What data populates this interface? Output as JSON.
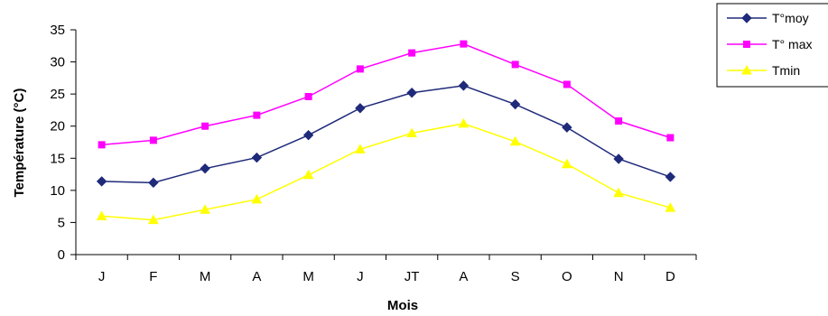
{
  "chart_data": {
    "type": "line",
    "title": "",
    "xlabel": "Mois",
    "ylabel": "Température (°C)",
    "categories": [
      "J",
      "F",
      "M",
      "A",
      "M",
      "J",
      "JT",
      "A",
      "S",
      "O",
      "N",
      "D"
    ],
    "ylim": [
      0,
      35
    ],
    "yticks": [
      0,
      5,
      10,
      15,
      20,
      25,
      30,
      35
    ],
    "grid": false,
    "legend_position": "top-right",
    "series": [
      {
        "name": "T°moy",
        "color": "#1f2a7a",
        "marker": "diamond",
        "values": [
          11.4,
          11.2,
          13.4,
          15.1,
          18.6,
          22.8,
          25.2,
          26.3,
          23.4,
          19.8,
          14.9,
          12.1
        ]
      },
      {
        "name": "T° max",
        "color": "#ff00ff",
        "marker": "square",
        "values": [
          17.1,
          17.8,
          20.0,
          21.7,
          24.6,
          28.9,
          31.4,
          32.8,
          29.6,
          26.5,
          20.8,
          18.2
        ]
      },
      {
        "name": "Tmin",
        "color": "#ffff00",
        "marker": "triangle",
        "values": [
          6.0,
          5.4,
          7.0,
          8.6,
          12.4,
          16.4,
          18.9,
          20.4,
          17.6,
          14.1,
          9.6,
          7.3
        ]
      }
    ]
  }
}
